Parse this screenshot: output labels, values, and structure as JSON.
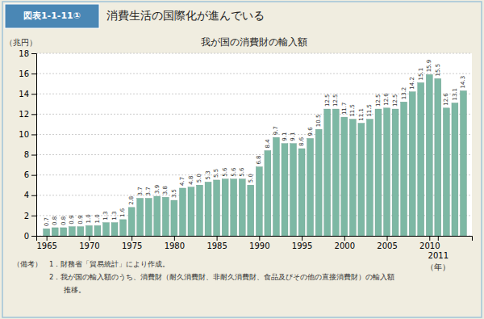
{
  "chart_data": {
    "type": "bar",
    "title": "我が国の消費財の輸入額",
    "subtitle": "消費生活の国際化が進んでいる",
    "ylabel": "（兆円）",
    "xlabel": "（年）",
    "annotations": [
      "図表1-1-11①",
      "（備考）　1．財務省「貿易統計」により作成。",
      "　　　　　2．我が国の輸入額のうち、消費財（耐久消費財、非耐久消費財、食品及びその他の直接消費財）の輸入額",
      "　　　　　　　推移。"
    ],
    "x": [
      1965,
      1966,
      1967,
      1968,
      1969,
      1970,
      1971,
      1972,
      1973,
      1974,
      1975,
      1976,
      1977,
      1978,
      1979,
      1980,
      1981,
      1982,
      1983,
      1984,
      1985,
      1986,
      1987,
      1988,
      1989,
      1990,
      1991,
      1992,
      1993,
      1994,
      1995,
      1996,
      1997,
      1998,
      1999,
      2000,
      2001,
      2002,
      2003,
      2004,
      2005,
      2006,
      2007,
      2008,
      2009,
      2010,
      2011,
      2012,
      2013,
      2014
    ],
    "values": [
      0.7,
      0.8,
      0.8,
      0.9,
      0.9,
      1.0,
      1.0,
      1.3,
      1.3,
      1.6,
      2.8,
      3.7,
      3.7,
      3.9,
      3.8,
      3.5,
      4.7,
      4.8,
      5.0,
      5.3,
      5.5,
      5.6,
      5.6,
      5.6,
      5.0,
      6.8,
      8.4,
      9.7,
      9.1,
      9.1,
      8.6,
      9.6,
      10.5,
      12.5,
      12.5,
      11.7,
      11.5,
      11.1,
      11.5,
      12.5,
      12.6,
      12.5,
      13.2,
      14.2,
      15.1,
      15.9,
      15.5,
      12.6,
      13.1,
      14.3
    ],
    "value_labels": [
      "0.7",
      "0.8",
      "0.8",
      "0.9",
      "0.9",
      "1.0",
      "1.0",
      "1.3",
      "1.3",
      "1.6",
      "2.8",
      "3.7",
      "3.7",
      "3.9",
      "3.8",
      "3.5",
      "4.7",
      "4.8",
      "5.0",
      "5.3",
      "5.5",
      "5.6",
      "5.6",
      "5.6",
      "5.0",
      "6.8",
      "8.4",
      "9.7",
      "9.1",
      "9.1",
      "8.6",
      "9.6",
      "10.5",
      "12.5",
      "12.5",
      "11.7",
      "11.5",
      "11.1",
      "11.5",
      "12.5",
      "12.6",
      "12.5",
      "13.2",
      "14.2",
      "15.1",
      "15.9",
      "15.5",
      "12.6",
      "13.1",
      "14.3"
    ],
    "data_labels": true,
    "color": "#7db8a4",
    "xlim": [
      1963.8,
      2015.0
    ],
    "xticks": [
      1965,
      1970,
      1975,
      1980,
      1985,
      1990,
      1995,
      2000,
      2005,
      2010,
      2011
    ],
    "ylim": [
      0,
      18
    ],
    "yticks": [
      0,
      2,
      4,
      6,
      8,
      10,
      12,
      14,
      16,
      18
    ],
    "grid": true
  }
}
